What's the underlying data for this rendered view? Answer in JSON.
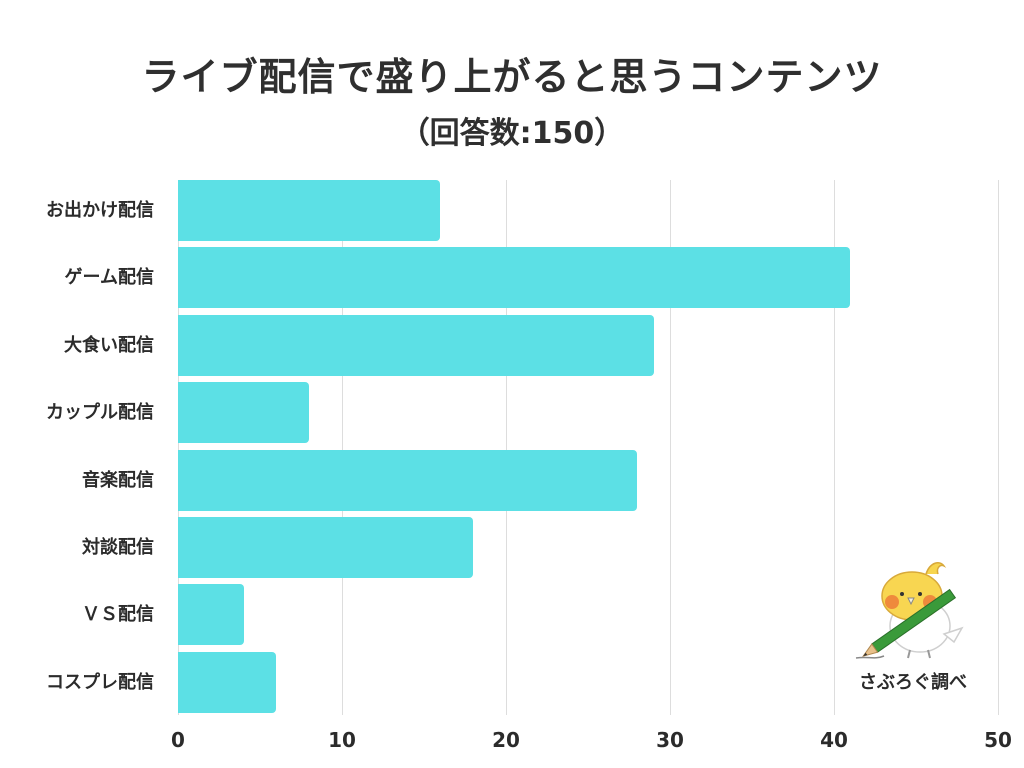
{
  "header": {
    "title": "ライブ配信で盛り上がると思うコンテンツ",
    "subtitle": "（回答数:150）"
  },
  "credit": "さぶろぐ調べ",
  "mascot_icon": "bird-with-pencil-icon",
  "colors": {
    "bar": "#5ce0e5",
    "grid": "#dddddd",
    "text": "#2b2b2b"
  },
  "axis": {
    "ticks": [
      "0",
      "10",
      "20",
      "30",
      "40",
      "50"
    ]
  },
  "bars": [
    {
      "label": "お出かけ配信",
      "value": 16
    },
    {
      "label": "ゲーム配信",
      "value": 41
    },
    {
      "label": "大食い配信",
      "value": 29
    },
    {
      "label": "カップル配信",
      "value": 8
    },
    {
      "label": "音楽配信",
      "value": 28
    },
    {
      "label": "対談配信",
      "value": 18
    },
    {
      "label": "ＶＳ配信",
      "value": 4
    },
    {
      "label": "コスプレ配信",
      "value": 6
    }
  ],
  "chart_data": {
    "type": "bar",
    "orientation": "horizontal",
    "title": "ライブ配信で盛り上がると思うコンテンツ",
    "subtitle": "（回答数:150）",
    "categories": [
      "お出かけ配信",
      "ゲーム配信",
      "大食い配信",
      "カップル配信",
      "音楽配信",
      "対談配信",
      "ＶＳ配信",
      "コスプレ配信"
    ],
    "values": [
      16,
      41,
      29,
      8,
      28,
      18,
      4,
      6
    ],
    "xlabel": "",
    "ylabel": "",
    "xlim": [
      0,
      50
    ],
    "xticks": [
      0,
      10,
      20,
      30,
      40,
      50
    ],
    "grid": true,
    "legend": null,
    "annotations": [
      "さぶろぐ調べ"
    ]
  }
}
